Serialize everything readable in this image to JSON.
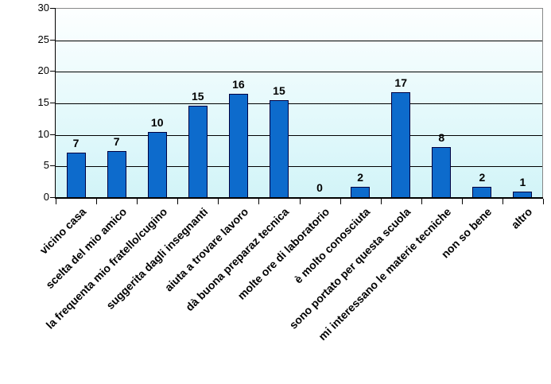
{
  "chart_data": {
    "type": "bar",
    "title": "",
    "xlabel": "",
    "ylabel": "",
    "categories": [
      "vicino casa",
      "scelta del mio amico",
      "la frequenta mio fratello/cugino",
      "suggerita dagli insegnanti",
      "aiuta a trovare lavoro",
      "dà buona preparaz tecnica",
      "molte ore di laboratorio",
      "è molto conosciuta",
      "sono portato per questa scuola",
      "mi interessano le materie tecniche",
      "non so bene",
      "altro"
    ],
    "values": [
      7,
      7,
      10,
      15,
      16,
      15,
      0,
      2,
      17,
      8,
      2,
      1
    ],
    "bar_heights_precise": [
      7.0,
      7.3,
      10.3,
      14.5,
      16.4,
      15.4,
      0,
      1.6,
      16.6,
      8.0,
      1.6,
      0.9
    ],
    "ylim": [
      0,
      30
    ],
    "y_ticks": [
      0,
      5,
      10,
      15,
      20,
      25,
      30
    ],
    "grid": true,
    "legend_position": "none",
    "colors": {
      "bar_fill": "#0D6BCC",
      "bar_border": "#000040",
      "gridline": "#000000",
      "axis_line": "#000000",
      "plot_border": "#888888",
      "plot_bg_top": "#FDFFFF",
      "plot_bg_bottom": "#D2F4F8",
      "text": "#000000",
      "page_bg": "#FFFFFF"
    }
  }
}
